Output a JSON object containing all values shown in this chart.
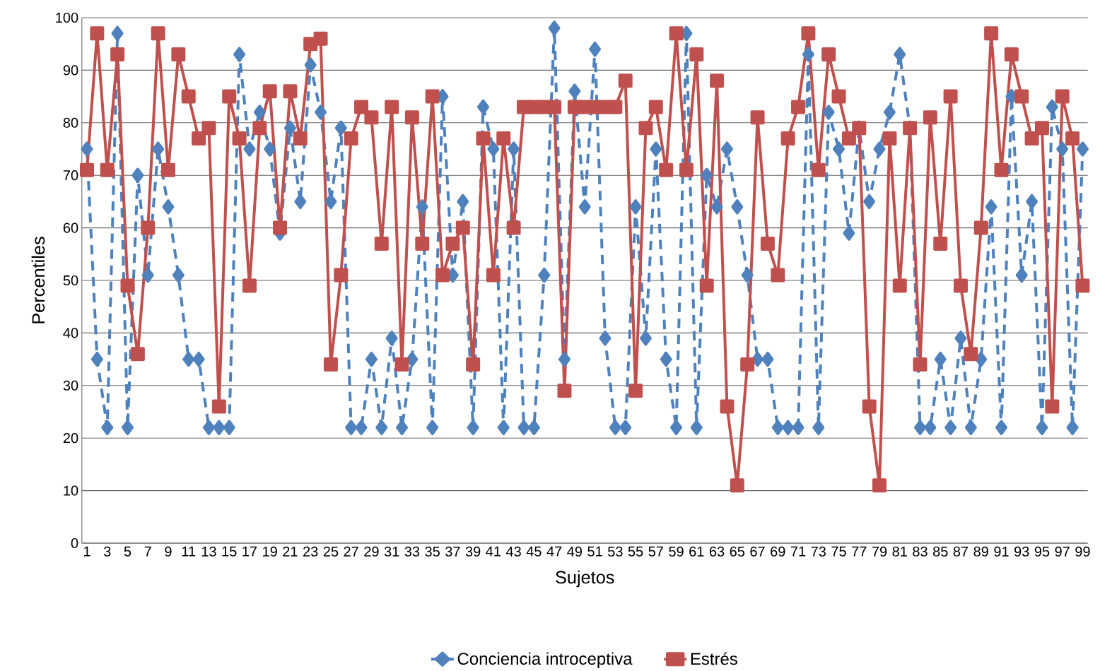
{
  "chart_data": {
    "type": "line",
    "xlabel": "Sujetos",
    "ylabel": "Percentiles",
    "categories": [
      "1",
      null,
      "3",
      null,
      "5",
      null,
      "7",
      null,
      "9",
      null,
      "11",
      null,
      "13",
      null,
      "15",
      null,
      "17",
      null,
      "19",
      null,
      "21",
      null,
      "23",
      null,
      "25",
      null,
      "27",
      null,
      "29",
      null,
      "31",
      null,
      "33",
      null,
      "35",
      null,
      "37",
      null,
      "39",
      null,
      "41",
      null,
      "43",
      null,
      "45",
      null,
      "47",
      null,
      "49",
      null,
      "51",
      null,
      "53",
      null,
      "55",
      null,
      "57",
      null,
      "59",
      null,
      "61",
      null,
      "63",
      null,
      "65",
      null,
      "67",
      null,
      "69",
      null,
      "71",
      null,
      "73",
      null,
      "75",
      null,
      "77",
      null,
      "79",
      null,
      "81",
      null,
      "83",
      null,
      "85",
      null,
      "87",
      null,
      "89",
      null,
      "91",
      null,
      "93",
      null,
      "95",
      null,
      "97",
      null,
      "99"
    ],
    "series": [
      {
        "name": "Conciencia introceptiva",
        "color": "#4f81bd",
        "marker": "diamond",
        "line_style": "dashed",
        "values": [
          75,
          35,
          22,
          97,
          22,
          70,
          51,
          75,
          64,
          51,
          35,
          35,
          22,
          22,
          22,
          93,
          75,
          82,
          75,
          59,
          79,
          65,
          91,
          82,
          65,
          79,
          22,
          22,
          35,
          22,
          39,
          22,
          35,
          64,
          22,
          85,
          51,
          65,
          22,
          83,
          75,
          22,
          75,
          22,
          22,
          51,
          98,
          35,
          86,
          64,
          94,
          39,
          22,
          22,
          64,
          39,
          75,
          35,
          22,
          97,
          22,
          70,
          64,
          75,
          64,
          51,
          35,
          35,
          22,
          22,
          22,
          93,
          22,
          82,
          75,
          59,
          79,
          65,
          75,
          82,
          93,
          79,
          22,
          22,
          35,
          22,
          39,
          22,
          35,
          64,
          22,
          85,
          51,
          65,
          22,
          83,
          75,
          22,
          75
        ]
      },
      {
        "name": "Estrés",
        "color": "#c0504d",
        "marker": "square",
        "line_style": "solid",
        "values": [
          71,
          97,
          71,
          93,
          49,
          36,
          60,
          97,
          71,
          93,
          85,
          77,
          79,
          26,
          85,
          77,
          49,
          79,
          86,
          60,
          86,
          77,
          95,
          96,
          34,
          51,
          77,
          83,
          81,
          57,
          83,
          34,
          81,
          57,
          85,
          51,
          57,
          60,
          34,
          77,
          51,
          77,
          60,
          83,
          83,
          83,
          83,
          29,
          83,
          83,
          83,
          83,
          83,
          88,
          29,
          79,
          83,
          71,
          97,
          71,
          93,
          49,
          88,
          26,
          11,
          34,
          81,
          57,
          51,
          77,
          83,
          97,
          71,
          93,
          85,
          77,
          79,
          26,
          11,
          77,
          49,
          79,
          34,
          81,
          57,
          85,
          49,
          36,
          60,
          97,
          71,
          93,
          85,
          77,
          79,
          26,
          85,
          77,
          49
        ]
      }
    ],
    "ylim": [
      0,
      100
    ],
    "yticks": [
      0,
      10,
      20,
      30,
      40,
      50,
      60,
      70,
      80,
      90,
      100
    ],
    "grid": "y",
    "legend": "bottom"
  }
}
